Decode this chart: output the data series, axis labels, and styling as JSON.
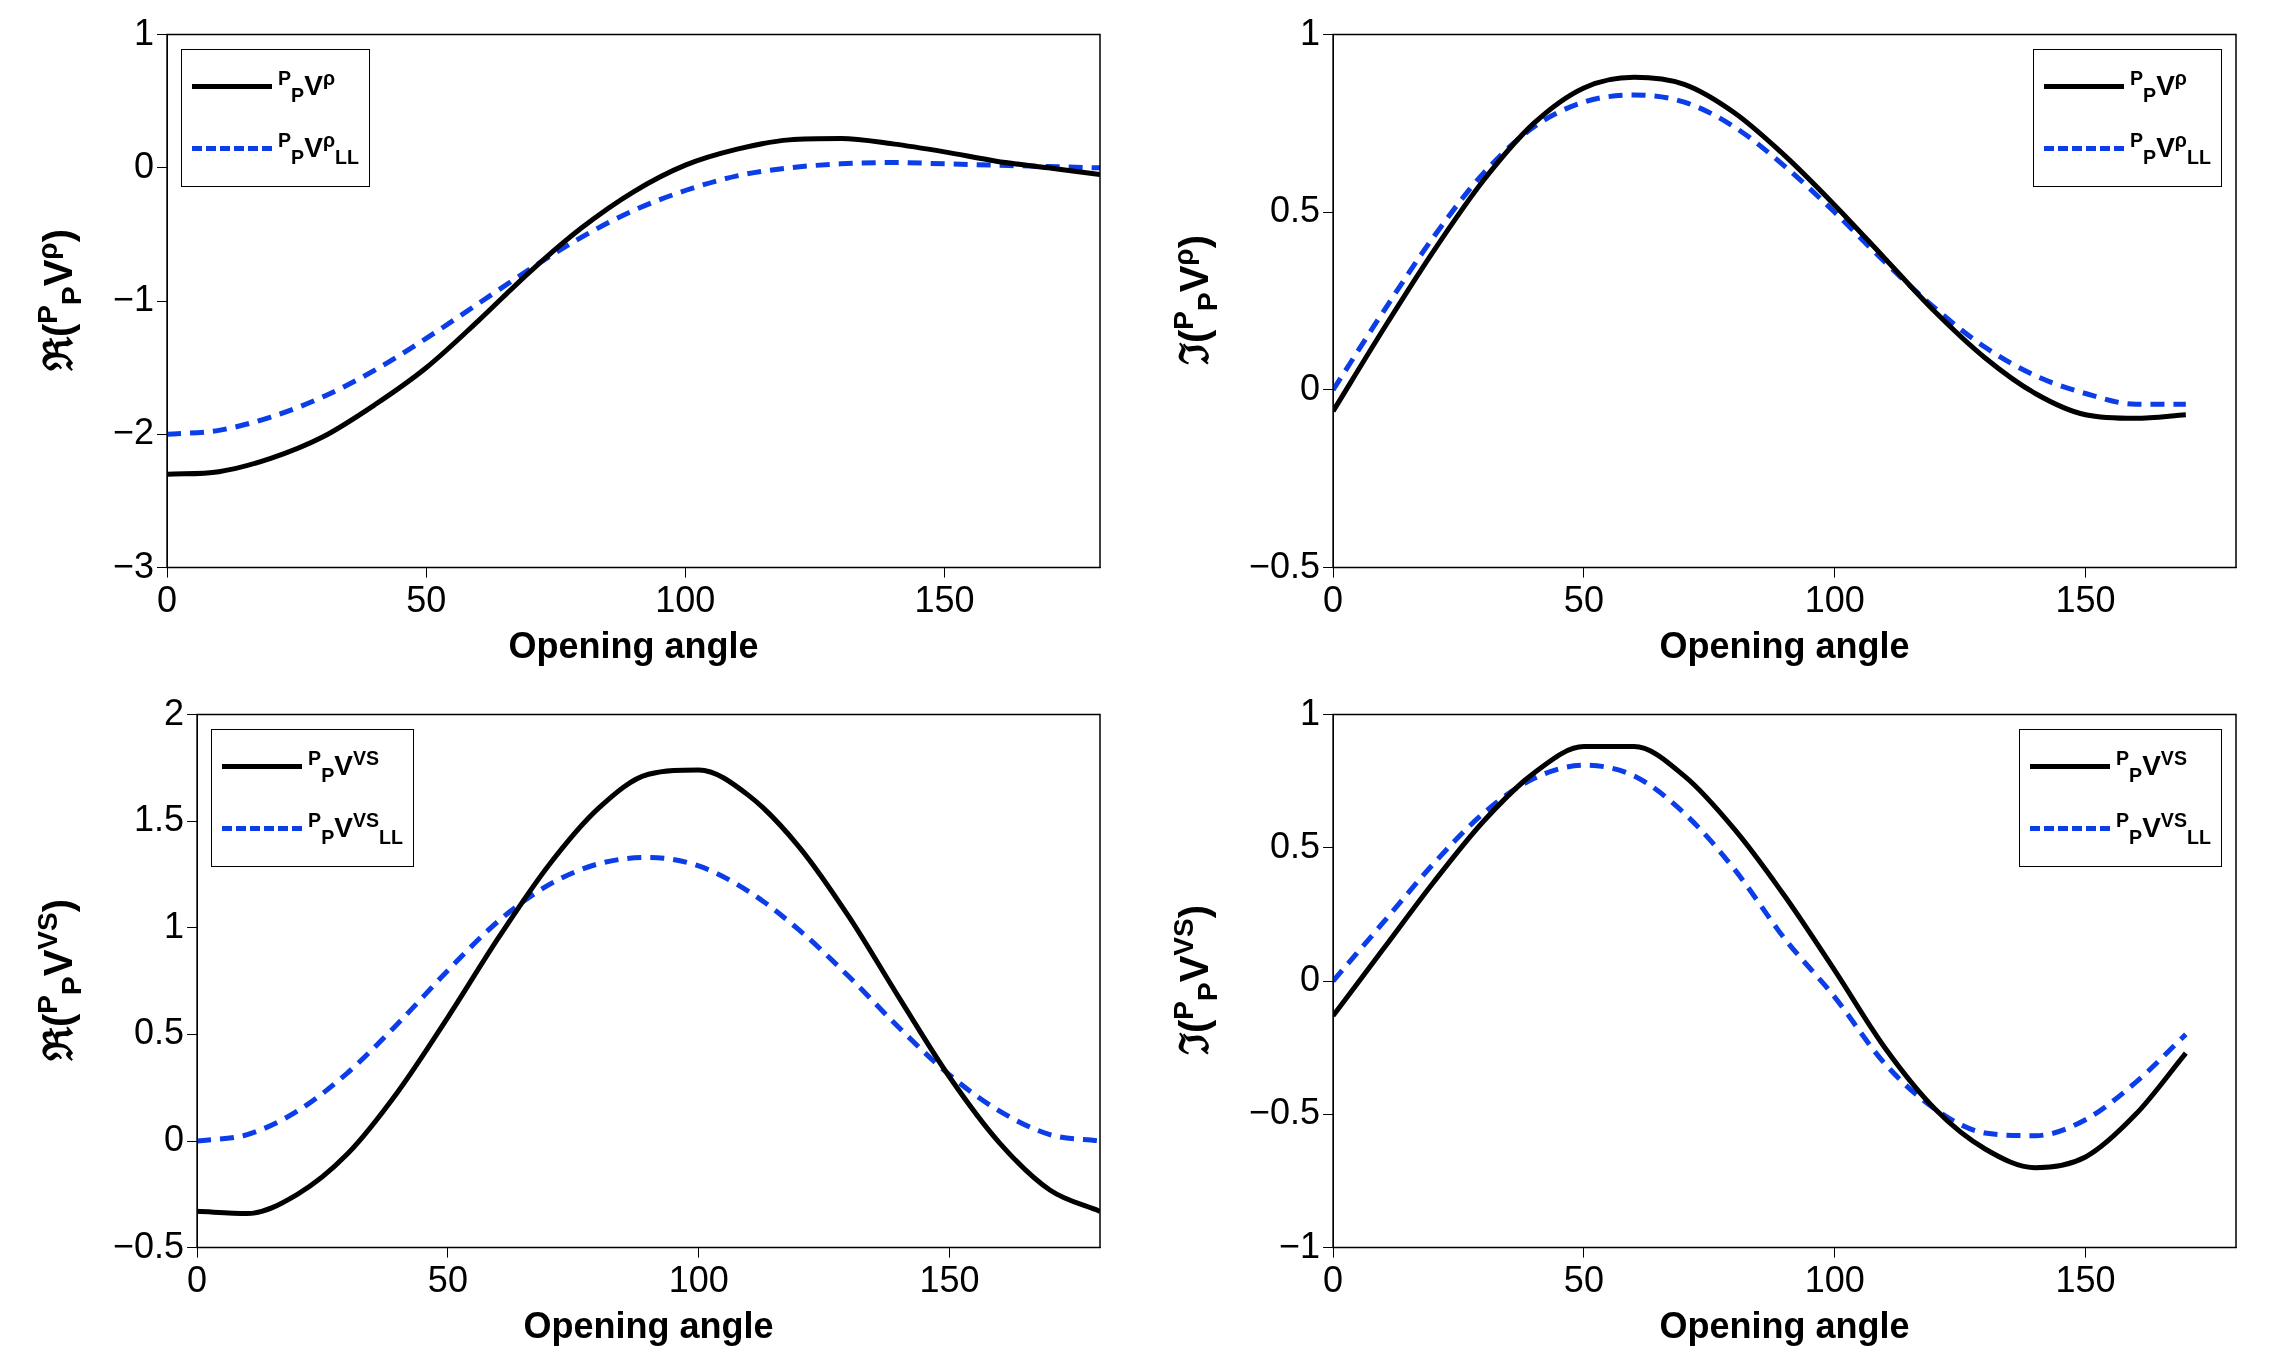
{
  "chart_data": [
    {
      "type": "line",
      "xlabel": "Opening angle",
      "ylabel": "ℜ($^{P}$$_{P}$V$^{ρ}$)",
      "xlim": [
        0,
        180
      ],
      "xticks": [
        0,
        50,
        100,
        150
      ],
      "ylim": [
        -3,
        1
      ],
      "yticks": [
        -3,
        -2,
        -1,
        0,
        1
      ],
      "legend": "top left",
      "x": [
        0,
        10,
        20,
        30,
        40,
        50,
        60,
        70,
        80,
        90,
        100,
        110,
        120,
        130,
        140,
        150,
        160,
        170,
        180
      ],
      "series": [
        {
          "name": "$^{P}$$_{P}$V$^{ρ}$",
          "color": "#000000",
          "line_style": "solid",
          "values": [
            -2.3,
            -2.28,
            -2.18,
            -2.02,
            -1.78,
            -1.5,
            -1.15,
            -0.78,
            -0.45,
            -0.18,
            0.02,
            0.14,
            0.21,
            0.22,
            0.18,
            0.12,
            0.05,
            0.0,
            -0.05
          ]
        },
        {
          "name": "$^{P}$$_{P}$V$^{ρ}$$_{LL}$",
          "color": "#0b3de8",
          "line_style": "dashed",
          "values": [
            -2.0,
            -1.97,
            -1.87,
            -1.72,
            -1.52,
            -1.28,
            -1.02,
            -0.76,
            -0.52,
            -0.32,
            -0.17,
            -0.06,
            0.0,
            0.03,
            0.04,
            0.03,
            0.02,
            0.01,
            0.0
          ]
        }
      ]
    },
    {
      "type": "line",
      "xlabel": "Opening angle",
      "ylabel": "ℑ($^{P}$$_{P}$V$^{ρ}$)",
      "xlim": [
        0,
        180
      ],
      "xticks": [
        0,
        50,
        100,
        150
      ],
      "ylim": [
        -0.5,
        1
      ],
      "yticks": [
        -0.5,
        0,
        0.5,
        1
      ],
      "legend": "top right",
      "x": [
        0,
        10,
        20,
        30,
        40,
        50,
        60,
        70,
        80,
        90,
        100,
        110,
        120,
        130,
        140,
        150,
        160,
        170
      ],
      "series": [
        {
          "name": "$^{P}$$_{P}$V$^{ρ}$",
          "color": "#000000",
          "line_style": "solid",
          "values": [
            -0.06,
            0.17,
            0.39,
            0.59,
            0.75,
            0.85,
            0.88,
            0.86,
            0.78,
            0.66,
            0.52,
            0.37,
            0.22,
            0.09,
            -0.01,
            -0.07,
            -0.08,
            -0.07
          ]
        },
        {
          "name": "$^{P}$$_{P}$V$^{ρ}$$_{LL}$",
          "color": "#0b3de8",
          "line_style": "dashed",
          "values": [
            0.0,
            0.22,
            0.43,
            0.61,
            0.74,
            0.81,
            0.83,
            0.81,
            0.74,
            0.63,
            0.5,
            0.36,
            0.23,
            0.12,
            0.04,
            -0.01,
            -0.04,
            -0.04
          ]
        }
      ]
    },
    {
      "type": "line",
      "xlabel": "Opening angle",
      "ylabel": "ℜ($^{P}$$_{P}$V$^{VS}$)",
      "xlim": [
        0,
        180
      ],
      "xticks": [
        0,
        50,
        100,
        150
      ],
      "ylim": [
        -0.5,
        2
      ],
      "yticks": [
        -0.5,
        0,
        0.5,
        1,
        1.5,
        2
      ],
      "legend": "top left",
      "x": [
        0,
        10,
        20,
        30,
        40,
        50,
        60,
        70,
        80,
        90,
        100,
        110,
        120,
        130,
        140,
        150,
        160,
        170,
        180
      ],
      "series": [
        {
          "name": "$^{P}$$_{P}$V$^{VS}$",
          "color": "#000000",
          "line_style": "solid",
          "values": [
            -0.33,
            -0.34,
            -0.25,
            -0.06,
            0.23,
            0.58,
            0.95,
            1.29,
            1.56,
            1.72,
            1.74,
            1.62,
            1.38,
            1.05,
            0.67,
            0.3,
            -0.01,
            -0.23,
            -0.33
          ]
        },
        {
          "name": "$^{P}$$_{P}$V$^{VS}$$_{LL}$",
          "color": "#0b3de8",
          "line_style": "dashed",
          "values": [
            0.0,
            0.03,
            0.14,
            0.32,
            0.55,
            0.8,
            1.03,
            1.2,
            1.3,
            1.33,
            1.29,
            1.17,
            0.99,
            0.77,
            0.53,
            0.31,
            0.14,
            0.03,
            0.0
          ]
        }
      ]
    },
    {
      "type": "line",
      "xlabel": "Opening angle",
      "ylabel": "ℑ($^{P}$$_{P}$V$^{VS}$)",
      "xlim": [
        0,
        180
      ],
      "xticks": [
        0,
        50,
        100,
        150
      ],
      "ylim": [
        -1,
        1
      ],
      "yticks": [
        -1,
        -0.5,
        0,
        0.5,
        1
      ],
      "legend": "top right",
      "x": [
        0,
        10,
        20,
        30,
        40,
        50,
        60,
        70,
        80,
        90,
        100,
        110,
        120,
        130,
        140,
        150,
        160,
        170
      ],
      "series": [
        {
          "name": "$^{P}$$_{P}$V$^{VS}$",
          "color": "#000000",
          "line_style": "solid",
          "values": [
            -0.13,
            0.12,
            0.37,
            0.6,
            0.78,
            0.88,
            0.88,
            0.77,
            0.57,
            0.32,
            0.04,
            -0.25,
            -0.48,
            -0.63,
            -0.7,
            -0.66,
            -0.5,
            -0.27
          ]
        },
        {
          "name": "$^{P}$$_{P}$V$^{VS}$$_{LL}$",
          "color": "#0b3de8",
          "line_style": "dashed",
          "values": [
            0.0,
            0.22,
            0.44,
            0.63,
            0.76,
            0.81,
            0.77,
            0.63,
            0.42,
            0.16,
            -0.06,
            -0.31,
            -0.48,
            -0.57,
            -0.58,
            -0.52,
            -0.38,
            -0.2
          ]
        }
      ]
    }
  ]
}
